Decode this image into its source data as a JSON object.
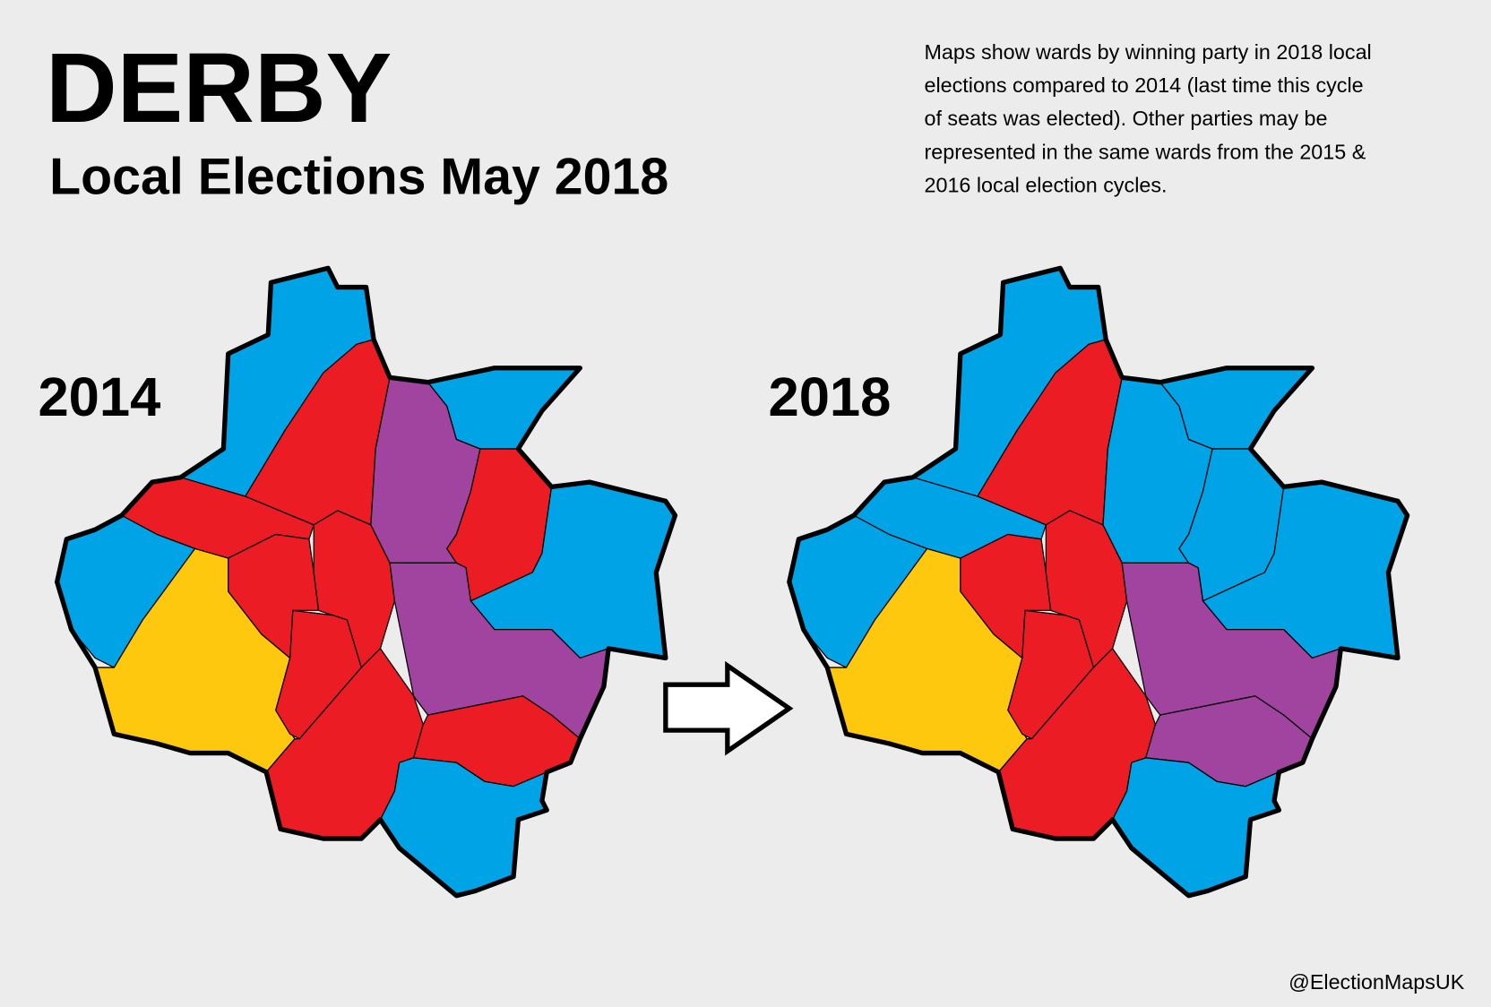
{
  "header": {
    "title": "DERBY",
    "subtitle": "Local Elections May 2018"
  },
  "note": {
    "lines": [
      "Maps show wards by winning party in 2018 local",
      "elections compared to 2014 (last time this cycle",
      "of seats was elected). Other parties may be",
      "represented in the same wards from the 2015 &",
      "2016 local election cycles."
    ]
  },
  "maps": [
    {
      "label": "2014"
    },
    {
      "label": "2018"
    }
  ],
  "credit": "@ElectionMapsUK"
}
